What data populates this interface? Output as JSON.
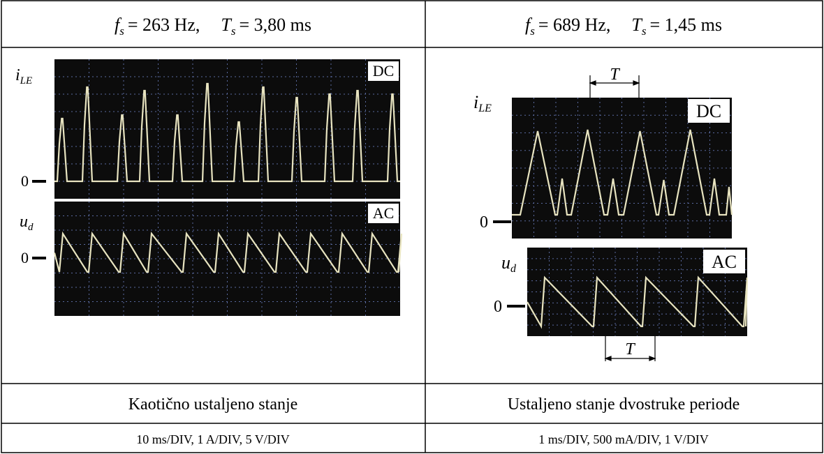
{
  "table": {
    "header": [
      {
        "f": "f",
        "f_sub": "s",
        "f_value": "= 263 Hz,",
        "t": "T",
        "t_sub": "s",
        "t_value": "= 3,80 ms"
      },
      {
        "f": "f",
        "f_sub": "s",
        "f_value": "= 689 Hz,",
        "t": "T",
        "t_sub": "s",
        "t_value": "= 1,45 ms"
      }
    ],
    "scopes": [
      {
        "current_label": "i",
        "current_sub": "LE",
        "current_coupling": "DC",
        "current_zero": "0",
        "voltage_label": "u",
        "voltage_sub": "d",
        "voltage_coupling": "AC",
        "voltage_zero": "0"
      },
      {
        "current_label": "i",
        "current_sub": "LE",
        "current_coupling": "DC",
        "current_zero": "0",
        "voltage_label": "u",
        "voltage_sub": "d",
        "voltage_coupling": "AC",
        "voltage_zero": "0",
        "period_top": "T",
        "period_bottom": "T"
      }
    ],
    "states": [
      "Kaotično ustaljeno stanje",
      "Ustaljeno stanje dvostruke periode"
    ],
    "scales": [
      "10 ms/DIV, 1 A/DIV, 5 V/DIV",
      "1 ms/DIV, 500 mA/DIV, 1 V/DIV"
    ]
  }
}
